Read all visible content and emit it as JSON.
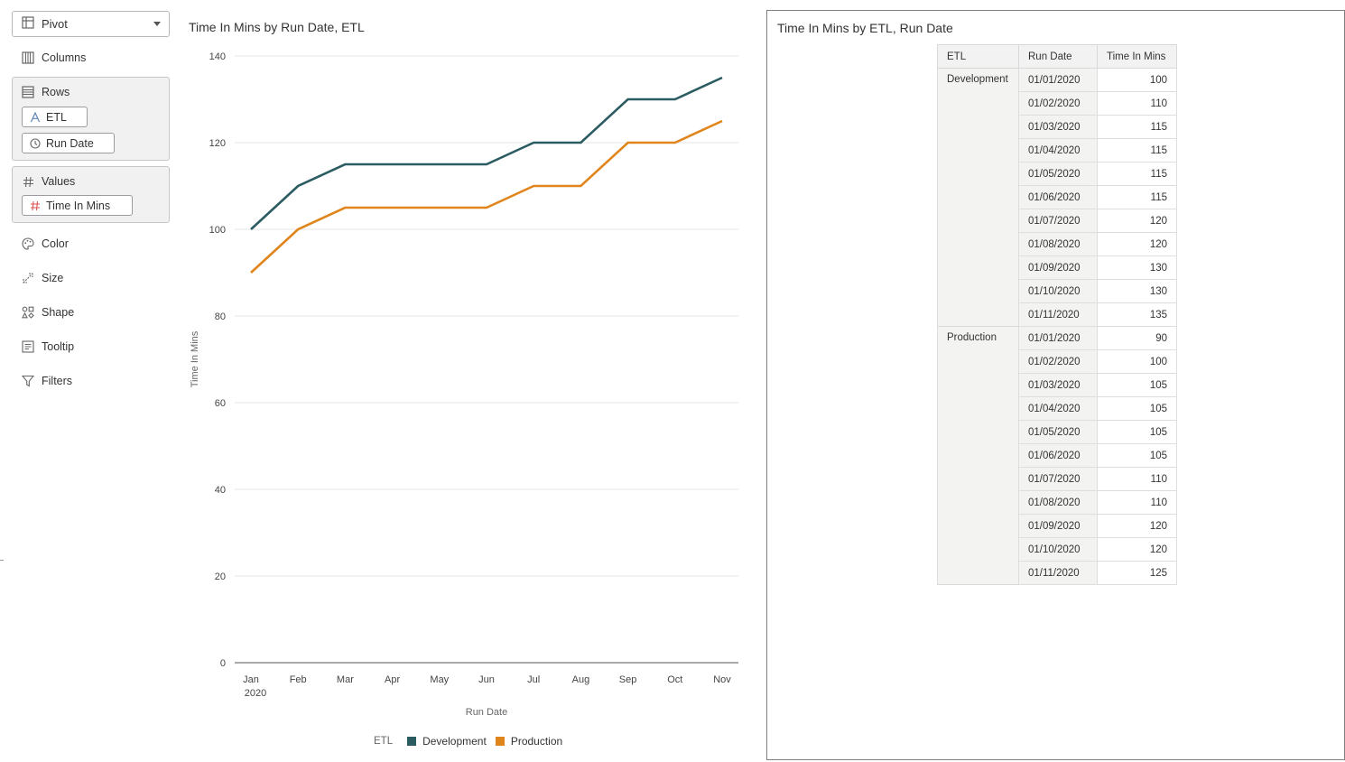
{
  "grammar": {
    "viz_type": "Pivot",
    "columns_label": "Columns",
    "rows_label": "Rows",
    "rows_items": [
      "ETL",
      "Run Date"
    ],
    "values_label": "Values",
    "values_items": [
      "Time In Mins"
    ],
    "color_label": "Color",
    "size_label": "Size",
    "shape_label": "Shape",
    "tooltip_label": "Tooltip",
    "filters_label": "Filters"
  },
  "chart": {
    "title": "Time In Mins by Run Date, ETL",
    "legend_title": "ETL"
  },
  "chart_data": {
    "type": "line",
    "title": "Time In Mins by Run Date, ETL",
    "xlabel": "Run Date",
    "ylabel": "Time In Mins",
    "categories": [
      "Jan",
      "Feb",
      "Mar",
      "Apr",
      "May",
      "Jun",
      "Jul",
      "Aug",
      "Sep",
      "Oct",
      "Nov"
    ],
    "category_sublabel": "2020",
    "ylim": [
      0,
      140
    ],
    "yticks": [
      0,
      20,
      40,
      60,
      80,
      100,
      120,
      140
    ],
    "grid": true,
    "legend_position": "bottom",
    "series": [
      {
        "name": "Development",
        "color": "#2b5c62",
        "values": [
          100,
          110,
          115,
          115,
          115,
          115,
          120,
          120,
          130,
          130,
          135
        ]
      },
      {
        "name": "Production",
        "color": "#e0851b",
        "values": [
          90,
          100,
          105,
          105,
          105,
          105,
          110,
          110,
          120,
          120,
          125
        ]
      }
    ]
  },
  "table": {
    "title": "Time In Mins by ETL, Run Date",
    "headers": [
      "ETL",
      "Run Date",
      "Time In Mins"
    ],
    "groups": [
      {
        "etl": "Development",
        "rows": [
          {
            "date": "01/01/2020",
            "value": "100"
          },
          {
            "date": "01/02/2020",
            "value": "110"
          },
          {
            "date": "01/03/2020",
            "value": "115"
          },
          {
            "date": "01/04/2020",
            "value": "115"
          },
          {
            "date": "01/05/2020",
            "value": "115"
          },
          {
            "date": "01/06/2020",
            "value": "115"
          },
          {
            "date": "01/07/2020",
            "value": "120"
          },
          {
            "date": "01/08/2020",
            "value": "120"
          },
          {
            "date": "01/09/2020",
            "value": "130"
          },
          {
            "date": "01/10/2020",
            "value": "130"
          },
          {
            "date": "01/11/2020",
            "value": "135"
          }
        ]
      },
      {
        "etl": "Production",
        "rows": [
          {
            "date": "01/01/2020",
            "value": "90"
          },
          {
            "date": "01/02/2020",
            "value": "100"
          },
          {
            "date": "01/03/2020",
            "value": "105"
          },
          {
            "date": "01/04/2020",
            "value": "105"
          },
          {
            "date": "01/05/2020",
            "value": "105"
          },
          {
            "date": "01/06/2020",
            "value": "105"
          },
          {
            "date": "01/07/2020",
            "value": "110"
          },
          {
            "date": "01/08/2020",
            "value": "110"
          },
          {
            "date": "01/09/2020",
            "value": "120"
          },
          {
            "date": "01/10/2020",
            "value": "120"
          },
          {
            "date": "01/11/2020",
            "value": "125"
          }
        ]
      }
    ]
  }
}
